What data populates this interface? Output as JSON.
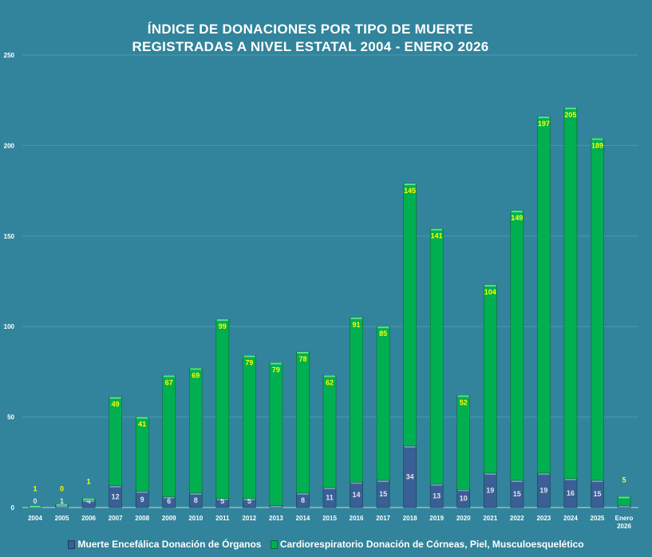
{
  "chart_data": {
    "type": "bar",
    "stacked": true,
    "title": [
      "ÍNDICE DE DONACIONES POR TIPO DE MUERTE",
      "REGISTRADAS A NIVEL ESTATAL 2004 - ENERO 2026"
    ],
    "categories": [
      "2004",
      "2005",
      "2006",
      "2007",
      "2008",
      "2009",
      "2010",
      "2011",
      "2012",
      "2013",
      "2014",
      "2015",
      "2016",
      "2017",
      "2018",
      "2019",
      "2020",
      "2021",
      "2022",
      "2023",
      "2024",
      "2025",
      "Enero 2026"
    ],
    "series": [
      {
        "name": "Muerte Encefálica Donación de Órganos",
        "color": "#3a5f94",
        "values": [
          0,
          1,
          4,
          12,
          9,
          6,
          8,
          5,
          5,
          1,
          8,
          11,
          14,
          15,
          34,
          13,
          10,
          19,
          15,
          19,
          16,
          15,
          1
        ]
      },
      {
        "name": "Cardiorespiratorio Donación de Córneas, Piel, Musculoesquelético",
        "color": "#00b050",
        "values": [
          1,
          0,
          1,
          49,
          41,
          67,
          69,
          99,
          79,
          79,
          78,
          62,
          91,
          85,
          145,
          141,
          52,
          104,
          149,
          197,
          205,
          189,
          5
        ]
      }
    ],
    "yticks": [
      0,
      50,
      100,
      150,
      200,
      250
    ],
    "ylim": [
      0,
      250
    ],
    "grid": true,
    "legend": "bottom",
    "xlabel": "",
    "ylabel": ""
  }
}
